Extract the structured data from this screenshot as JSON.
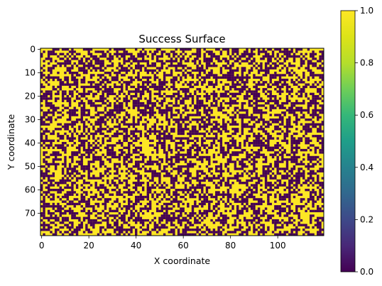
{
  "chart_data": {
    "type": "heatmap",
    "title": "Success Surface",
    "xlabel": "X coordinate",
    "ylabel": "Y coordinate",
    "grid": false,
    "xlim": [
      -0.5,
      119.5
    ],
    "ylim": [
      79.5,
      -0.5
    ],
    "x_ticks": [
      0,
      20,
      40,
      60,
      80,
      100
    ],
    "y_ticks": [
      0,
      10,
      20,
      30,
      40,
      50,
      60,
      70
    ],
    "columns": 120,
    "rows": 80,
    "value_range": [
      0,
      1
    ],
    "colormap": "viridis",
    "colors": {
      "low": "#440154",
      "high": "#fde725"
    },
    "colorbar": {
      "ticks": [
        "0.0",
        "0.2",
        "0.4",
        "0.6",
        "0.8",
        "1.0"
      ],
      "range": [
        0,
        1
      ],
      "placement": "right"
    }
  }
}
